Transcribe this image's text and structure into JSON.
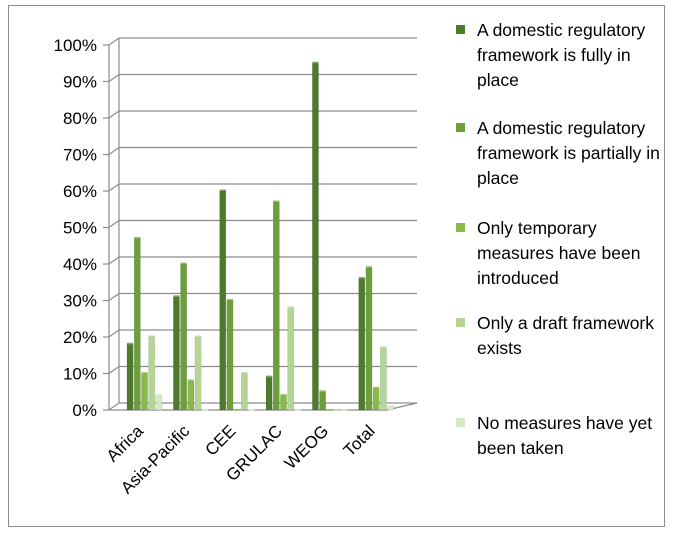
{
  "chart_data": {
    "type": "bar",
    "categories": [
      "Africa",
      "Asia-Pacific",
      "CEE",
      "GRULAC",
      "WEOG",
      "Total"
    ],
    "y_ticks": [
      "0%",
      "10%",
      "20%",
      "30%",
      "40%",
      "50%",
      "60%",
      "70%",
      "80%",
      "90%",
      "100%"
    ],
    "ylim": [
      0,
      100
    ],
    "grid": true,
    "legend_position": "right",
    "series": [
      {
        "name": "A domestic regulatory framework is fully in place",
        "color": "#4f7a2c",
        "values": [
          18,
          31,
          60,
          9,
          95,
          36
        ]
      },
      {
        "name": "A domestic regulatory framework is partially in place",
        "color": "#6d9e3c",
        "values": [
          47,
          40,
          30,
          57,
          5,
          39
        ]
      },
      {
        "name": "Only temporary measures have been introduced",
        "color": "#88b94a",
        "values": [
          10,
          8,
          0,
          4,
          0,
          6
        ]
      },
      {
        "name": "Only a draft framework exists",
        "color": "#b4d596",
        "values": [
          20,
          20,
          10,
          28,
          0,
          17
        ]
      },
      {
        "name": "No measures have yet been taken",
        "color": "#d7e8c6",
        "values": [
          4,
          0,
          0,
          0,
          0,
          1
        ]
      }
    ]
  }
}
